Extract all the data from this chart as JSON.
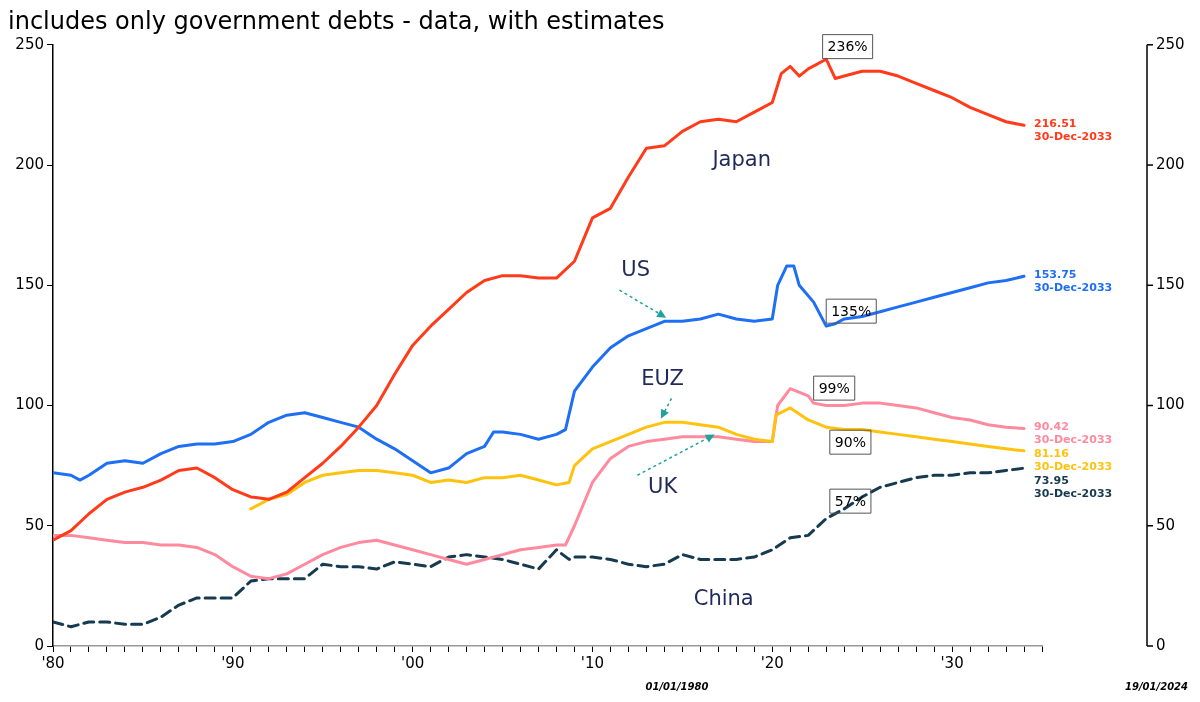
{
  "chart_data": {
    "type": "line",
    "title": "includes only government debts - data, with estimates",
    "xlim": [
      1980,
      2035
    ],
    "xticks": [
      {
        "value": 1980,
        "label": "'80"
      },
      {
        "value": 1981,
        "label": null
      },
      {
        "value": 1982,
        "label": null
      },
      {
        "value": 1983,
        "label": null
      },
      {
        "value": 1984,
        "label": null
      },
      {
        "value": 1985,
        "label": null
      },
      {
        "value": 1986,
        "label": null
      },
      {
        "value": 1987,
        "label": null
      },
      {
        "value": 1988,
        "label": null
      },
      {
        "value": 1989,
        "label": null
      },
      {
        "value": 1990,
        "label": "'90"
      },
      {
        "value": 1991,
        "label": null
      },
      {
        "value": 1992,
        "label": null
      },
      {
        "value": 1993,
        "label": null
      },
      {
        "value": 1994,
        "label": null
      },
      {
        "value": 1995,
        "label": null
      },
      {
        "value": 1996,
        "label": null
      },
      {
        "value": 1997,
        "label": null
      },
      {
        "value": 1998,
        "label": null
      },
      {
        "value": 1999,
        "label": null
      },
      {
        "value": 2000,
        "label": "'00"
      },
      {
        "value": 2001,
        "label": null
      },
      {
        "value": 2002,
        "label": null
      },
      {
        "value": 2003,
        "label": null
      },
      {
        "value": 2004,
        "label": null
      },
      {
        "value": 2005,
        "label": null
      },
      {
        "value": 2006,
        "label": null
      },
      {
        "value": 2007,
        "label": null
      },
      {
        "value": 2008,
        "label": null
      },
      {
        "value": 2009,
        "label": null
      },
      {
        "value": 2010,
        "label": "'10"
      },
      {
        "value": 2011,
        "label": null
      },
      {
        "value": 2012,
        "label": null
      },
      {
        "value": 2013,
        "label": null
      },
      {
        "value": 2014,
        "label": null
      },
      {
        "value": 2015,
        "label": null
      },
      {
        "value": 2016,
        "label": null
      },
      {
        "value": 2017,
        "label": null
      },
      {
        "value": 2018,
        "label": null
      },
      {
        "value": 2019,
        "label": null
      },
      {
        "value": 2020,
        "label": "'20"
      },
      {
        "value": 2021,
        "label": null
      },
      {
        "value": 2022,
        "label": null
      },
      {
        "value": 2023,
        "label": null
      },
      {
        "value": 2024,
        "label": null
      },
      {
        "value": 2025,
        "label": null
      },
      {
        "value": 2026,
        "label": null
      },
      {
        "value": 2027,
        "label": null
      },
      {
        "value": 2028,
        "label": null
      },
      {
        "value": 2029,
        "label": null
      },
      {
        "value": 2030,
        "label": "'30"
      },
      {
        "value": 2031,
        "label": null
      },
      {
        "value": 2032,
        "label": null
      },
      {
        "value": 2033,
        "label": null
      },
      {
        "value": 2034,
        "label": null
      },
      {
        "value": 2035,
        "label": null
      }
    ],
    "ylim": [
      0,
      250
    ],
    "yticks": [
      0,
      50,
      100,
      150,
      200,
      250
    ],
    "y2lim": [
      0,
      250
    ],
    "y2ticks": [
      0,
      50,
      100,
      150,
      200,
      250
    ],
    "grid": false,
    "legend": false,
    "marker": "none",
    "series": [
      {
        "name": "Japan",
        "color": "#ff3b1a",
        "line_style": "solid",
        "x": [
          1980,
          1981,
          1982,
          1983,
          1984,
          1985,
          1986,
          1987,
          1988,
          1989,
          1990,
          1991,
          1992,
          1993,
          1994,
          1995,
          1996,
          1997,
          1998,
          1999,
          2000,
          2001,
          2002,
          2003,
          2004,
          2005,
          2006,
          2007,
          2008,
          2009,
          2010,
          2011,
          2012,
          2013,
          2014,
          2015,
          2016,
          2017,
          2018,
          2019,
          2020,
          2020.5,
          2021,
          2021.5,
          2022,
          2023,
          2023.5,
          2024,
          2025,
          2026,
          2027,
          2028,
          2029,
          2030,
          2031,
          2032,
          2033,
          2034
        ],
        "values": [
          44,
          48,
          55,
          61,
          64,
          66,
          69,
          73,
          74,
          70,
          65,
          62,
          61,
          64,
          70,
          76,
          83,
          91,
          100,
          113,
          125,
          133,
          140,
          147,
          152,
          154,
          154,
          153,
          153,
          160,
          178,
          182,
          195,
          207,
          208,
          214,
          218,
          219,
          218,
          222,
          226,
          238,
          241,
          237,
          240,
          244,
          236,
          237,
          239,
          239,
          237,
          234,
          231,
          228,
          224,
          221,
          218,
          216.51
        ],
        "value_labels": [
          null,
          null,
          null,
          null,
          null,
          null,
          null,
          null,
          null,
          null,
          null,
          null,
          null,
          null,
          null,
          null,
          null,
          null,
          null,
          null,
          null,
          null,
          null,
          null,
          null,
          null,
          null,
          null,
          null,
          null,
          null,
          null,
          null,
          null,
          null,
          null,
          null,
          null,
          null,
          null,
          null,
          null,
          null,
          null,
          null,
          null,
          null,
          null,
          null,
          null,
          null,
          null,
          null,
          null,
          null,
          null,
          null,
          "216.51\n30-Dec-2033"
        ]
      },
      {
        "name": "US",
        "color": "#1f6ff5",
        "line_style": "solid",
        "x": [
          1980,
          1981,
          1981.5,
          1982,
          1983,
          1984,
          1985,
          1986,
          1987,
          1988,
          1989,
          1990,
          1991,
          1992,
          1993,
          1994,
          1995,
          1996,
          1997,
          1998,
          1999,
          2000,
          2001,
          2002,
          2003,
          2004,
          2004.5,
          2005,
          2006,
          2007,
          2008,
          2008.5,
          2009,
          2010,
          2011,
          2012,
          2013,
          2014,
          2015,
          2016,
          2017,
          2018,
          2019,
          2020,
          2020.3,
          2020.8,
          2021.2,
          2021.5,
          2022.3,
          2023,
          2023.5,
          2024,
          2025,
          2026,
          2027,
          2028,
          2029,
          2030,
          2031,
          2032,
          2033,
          2034
        ],
        "values": [
          72,
          71,
          69,
          71,
          76,
          77,
          76,
          80,
          83,
          84,
          84,
          85,
          88,
          93,
          96,
          97,
          95,
          93,
          91,
          86,
          82,
          77,
          72,
          74,
          80,
          83,
          89,
          89,
          88,
          86,
          88,
          90,
          106,
          116,
          124,
          129,
          132,
          135,
          135,
          136,
          138,
          136,
          135,
          136,
          150,
          158,
          158,
          150,
          143,
          133,
          134,
          136,
          137,
          139,
          141,
          143,
          145,
          147,
          149,
          151,
          152,
          153.75
        ],
        "value_labels": [
          null,
          null,
          null,
          null,
          null,
          null,
          null,
          null,
          null,
          null,
          null,
          null,
          null,
          null,
          null,
          null,
          null,
          null,
          null,
          null,
          null,
          null,
          null,
          null,
          null,
          null,
          null,
          null,
          null,
          null,
          null,
          null,
          null,
          null,
          null,
          null,
          null,
          null,
          null,
          null,
          null,
          null,
          null,
          null,
          null,
          null,
          null,
          null,
          null,
          null,
          null,
          null,
          null,
          null,
          null,
          null,
          null,
          null,
          null,
          null,
          null,
          "153.75\n30-Dec-2033"
        ]
      },
      {
        "name": "EUZ",
        "color": "#ffc20e",
        "line_style": "solid",
        "x": [
          1991,
          1992,
          1993,
          1994,
          1995,
          1996,
          1997,
          1998,
          1999,
          2000,
          2001,
          2002,
          2003,
          2004,
          2005,
          2006,
          2007,
          2008,
          2008.7,
          2009,
          2010,
          2011,
          2012,
          2013,
          2014,
          2015,
          2016,
          2017,
          2018,
          2019,
          2020,
          2020.2,
          2021,
          2022,
          2023,
          2024,
          2025,
          2026,
          2027,
          2028,
          2029,
          2030,
          2031,
          2032,
          2033,
          2034
        ],
        "values": [
          57,
          61,
          63,
          68,
          71,
          72,
          73,
          73,
          72,
          71,
          68,
          69,
          68,
          70,
          70,
          71,
          69,
          67,
          68,
          75,
          82,
          85,
          88,
          91,
          93,
          93,
          92,
          91,
          88,
          86,
          85,
          96,
          99,
          94,
          91,
          90,
          90,
          89,
          88,
          87,
          86,
          85,
          84,
          83,
          82,
          81.16
        ],
        "value_labels": [
          null,
          null,
          null,
          null,
          null,
          null,
          null,
          null,
          null,
          null,
          null,
          null,
          null,
          null,
          null,
          null,
          null,
          null,
          null,
          null,
          null,
          null,
          null,
          null,
          null,
          null,
          null,
          null,
          null,
          null,
          null,
          null,
          null,
          null,
          null,
          null,
          null,
          null,
          null,
          null,
          null,
          null,
          null,
          null,
          null,
          "81.16\n30-Dec-2033"
        ]
      },
      {
        "name": "UK",
        "color": "#ff8a9e",
        "line_style": "solid",
        "x": [
          1980,
          1981,
          1982,
          1983,
          1984,
          1985,
          1986,
          1987,
          1988,
          1989,
          1990,
          1991,
          1992,
          1993,
          1994,
          1995,
          1996,
          1997,
          1998,
          1999,
          2000,
          2001,
          2002,
          2003,
          2004,
          2005,
          2006,
          2007,
          2008,
          2008.5,
          2009,
          2010,
          2011,
          2012,
          2013,
          2014,
          2015,
          2016,
          2017,
          2018,
          2019,
          2020,
          2020.3,
          2021,
          2022,
          2022.3,
          2023,
          2024,
          2025,
          2026,
          2027,
          2028,
          2029,
          2030,
          2031,
          2032,
          2033,
          2034
        ],
        "values": [
          46,
          46,
          45,
          44,
          43,
          43,
          42,
          42,
          41,
          38,
          33,
          29,
          28,
          30,
          34,
          38,
          41,
          43,
          44,
          42,
          40,
          38,
          36,
          34,
          36,
          38,
          40,
          41,
          42,
          42,
          50,
          68,
          78,
          83,
          85,
          86,
          87,
          87,
          87,
          86,
          85,
          85,
          100,
          107,
          104,
          101,
          100,
          100,
          101,
          101,
          100,
          99,
          97,
          95,
          94,
          92,
          91,
          90.42
        ],
        "value_labels": [
          null,
          null,
          null,
          null,
          null,
          null,
          null,
          null,
          null,
          null,
          null,
          null,
          null,
          null,
          null,
          null,
          null,
          null,
          null,
          null,
          null,
          null,
          null,
          null,
          null,
          null,
          null,
          null,
          null,
          null,
          null,
          null,
          null,
          null,
          null,
          null,
          null,
          null,
          null,
          null,
          null,
          null,
          null,
          null,
          null,
          null,
          null,
          null,
          null,
          null,
          null,
          null,
          null,
          null,
          null,
          null,
          null,
          "90.42\n30-Dec-2033"
        ]
      },
      {
        "name": "China",
        "color": "#163a4f",
        "line_style": "dashed",
        "x": [
          1980,
          1981,
          1982,
          1983,
          1984,
          1985,
          1986,
          1987,
          1988,
          1989,
          1990,
          1991,
          1992,
          1993,
          1994,
          1995,
          1996,
          1997,
          1998,
          1999,
          2000,
          2001,
          2002,
          2003,
          2004,
          2005,
          2006,
          2007,
          2008,
          2008.7,
          2009,
          2010,
          2011,
          2012,
          2013,
          2014,
          2015,
          2016,
          2017,
          2018,
          2019,
          2020,
          2021,
          2022,
          2023,
          2024,
          2025,
          2026,
          2027,
          2028,
          2029,
          2030,
          2031,
          2032,
          2033,
          2034
        ],
        "values": [
          10,
          8,
          10,
          10,
          9,
          9,
          12,
          17,
          20,
          20,
          20,
          27,
          28,
          28,
          28,
          34,
          33,
          33,
          32,
          35,
          34,
          33,
          37,
          38,
          37,
          36,
          34,
          32,
          40,
          36,
          37,
          37,
          36,
          34,
          33,
          34,
          38,
          36,
          36,
          36,
          37,
          40,
          45,
          46,
          53,
          57,
          62,
          66,
          68,
          70,
          71,
          71,
          72,
          72,
          73,
          73.95
        ],
        "value_labels": [
          null,
          null,
          null,
          null,
          null,
          null,
          null,
          null,
          null,
          null,
          null,
          null,
          null,
          null,
          null,
          null,
          null,
          null,
          null,
          null,
          null,
          null,
          null,
          null,
          null,
          null,
          null,
          null,
          null,
          null,
          null,
          null,
          null,
          null,
          null,
          null,
          null,
          null,
          null,
          null,
          null,
          null,
          null,
          null,
          null,
          null,
          null,
          null,
          null,
          null,
          null,
          null,
          null,
          null,
          null,
          "73.95\n30-Dec-2033"
        ]
      }
    ],
    "annotations": [
      {
        "text": "236%",
        "x": 2022.8,
        "y": 243
      },
      {
        "text": "135%",
        "x": 2023,
        "y": 133
      },
      {
        "text": "99%",
        "x": 2022.3,
        "y": 101
      },
      {
        "text": "90%",
        "x": 2023.2,
        "y": 91
      },
      {
        "text": "57%",
        "x": 2023.2,
        "y": 54
      },
      "01/01/1980",
      "19/01/2024"
    ]
  }
}
